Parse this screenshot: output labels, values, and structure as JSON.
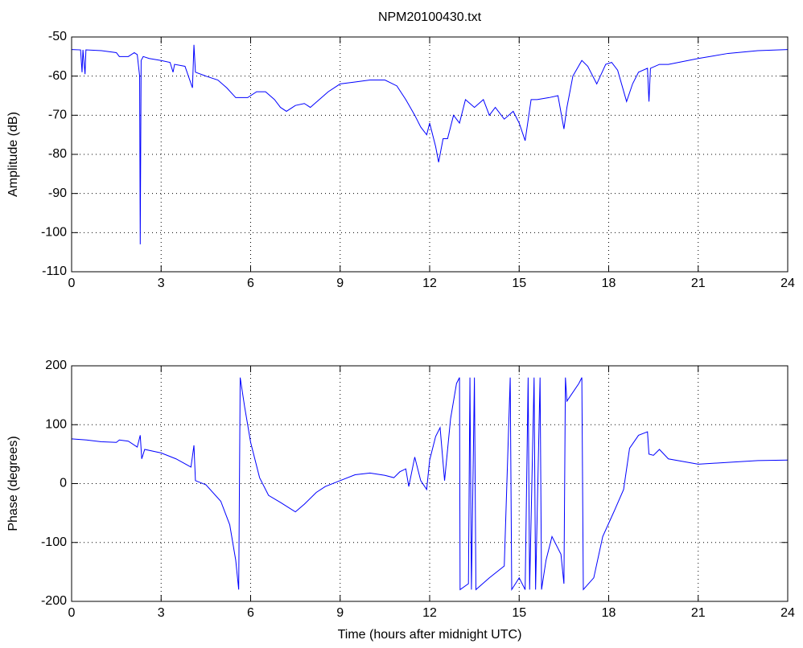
{
  "chart_data": [
    {
      "type": "line",
      "title": "NPM20100430.txt",
      "y_label": "Amplitude (dB)",
      "xlim": [
        0,
        24
      ],
      "xticks": [
        0,
        3,
        6,
        9,
        12,
        15,
        18,
        21,
        24
      ],
      "ylim": [
        -110,
        -50
      ],
      "yticks": [
        -110,
        -100,
        -90,
        -80,
        -70,
        -60,
        -50
      ],
      "grid": true,
      "color": "#0000ff",
      "x": [
        0,
        0.3,
        0.35,
        0.38,
        0.45,
        0.48,
        1.0,
        1.5,
        1.6,
        1.9,
        2.1,
        2.2,
        2.28,
        2.3,
        2.33,
        2.4,
        2.6,
        3,
        3.3,
        3.4,
        3.45,
        3.8,
        4.05,
        4.1,
        4.15,
        4.5,
        4.9,
        5.2,
        5.5,
        5.9,
        6.2,
        6.5,
        6.8,
        7,
        7.2,
        7.5,
        7.8,
        8,
        8.3,
        8.6,
        9,
        9.5,
        10,
        10.5,
        10.9,
        11.2,
        11.5,
        11.7,
        11.9,
        12,
        12.2,
        12.3,
        12.45,
        12.6,
        12.8,
        13,
        13.2,
        13.5,
        13.8,
        14,
        14.2,
        14.5,
        14.8,
        15,
        15.2,
        15.4,
        15.6,
        16,
        16.3,
        16.5,
        16.6,
        16.8,
        17.1,
        17.3,
        17.6,
        17.9,
        18.1,
        18.3,
        18.6,
        18.8,
        19,
        19.3,
        19.35,
        19.4,
        19.7,
        20,
        21,
        22,
        23,
        24
      ],
      "values": [
        -53.2,
        -53.3,
        -59,
        -53.3,
        -59.5,
        -53.3,
        -53.5,
        -54,
        -55,
        -55,
        -54,
        -54.5,
        -60,
        -103,
        -56,
        -55,
        -55.5,
        -56,
        -56.5,
        -59,
        -57,
        -57.5,
        -63,
        -52,
        -59,
        -60,
        -61,
        -63,
        -65.5,
        -65.5,
        -64,
        -64,
        -66,
        -68,
        -69,
        -67.5,
        -67,
        -68,
        -66,
        -64,
        -62,
        -61.5,
        -61,
        -61,
        -62.5,
        -66,
        -70,
        -73,
        -75,
        -72,
        -78,
        -82,
        -76,
        -76,
        -70,
        -72,
        -66,
        -68,
        -66,
        -70,
        -68,
        -71,
        -69,
        -72,
        -76.5,
        -66,
        -66,
        -65.5,
        -65,
        -73.5,
        -68,
        -60,
        -56,
        -57.5,
        -62,
        -57,
        -56.5,
        -58.5,
        -66.5,
        -62,
        -59,
        -58,
        -66.5,
        -58,
        -57,
        -57,
        -55.5,
        -54.2,
        -53.5,
        -53.2
      ]
    },
    {
      "type": "line",
      "x_label": "Time (hours after midnight UTC)",
      "y_label": "Phase (degrees)",
      "xlim": [
        0,
        24
      ],
      "xticks": [
        0,
        3,
        6,
        9,
        12,
        15,
        18,
        21,
        24
      ],
      "ylim": [
        -200,
        200
      ],
      "yticks": [
        -200,
        -100,
        0,
        100,
        200
      ],
      "grid": true,
      "color": "#0000ff",
      "x": [
        0,
        0.5,
        1,
        1.5,
        1.6,
        1.9,
        2.2,
        2.3,
        2.35,
        2.45,
        3,
        3.5,
        4,
        4.1,
        4.15,
        4.5,
        5,
        5.3,
        5.5,
        5.6,
        5.65,
        5.8,
        6,
        6.3,
        6.6,
        7,
        7.5,
        7.8,
        8.2,
        8.5,
        9,
        9.5,
        10,
        10.5,
        10.8,
        11,
        11.2,
        11.3,
        11.5,
        11.7,
        11.9,
        12,
        12.2,
        12.35,
        12.5,
        12.7,
        12.9,
        13,
        13.02,
        13.3,
        13.35,
        13.4,
        13.5,
        13.55,
        14,
        14.5,
        14.7,
        14.75,
        15,
        15.2,
        15.3,
        15.35,
        15.5,
        15.55,
        15.7,
        15.75,
        15.9,
        16.1,
        16.4,
        16.5,
        16.55,
        16.6,
        17,
        17.1,
        17.15,
        17.5,
        17.8,
        18.2,
        18.5,
        18.7,
        19,
        19.3,
        19.35,
        19.5,
        19.7,
        20,
        21,
        22,
        23,
        24
      ],
      "values": [
        76,
        74,
        71,
        70,
        74,
        72,
        62,
        82,
        42,
        58,
        52,
        42,
        28,
        65,
        5,
        -2,
        -30,
        -70,
        -130,
        -180,
        180,
        130,
        70,
        10,
        -20,
        -32,
        -48,
        -35,
        -15,
        -5,
        5,
        15,
        18,
        14,
        10,
        20,
        25,
        -5,
        45,
        5,
        -10,
        40,
        80,
        95,
        5,
        110,
        170,
        180,
        -180,
        -170,
        180,
        -180,
        180,
        -180,
        -160,
        -140,
        180,
        -180,
        -160,
        -180,
        180,
        -180,
        180,
        -180,
        180,
        -180,
        -130,
        -90,
        -120,
        -170,
        180,
        140,
        170,
        180,
        -180,
        -160,
        -90,
        -45,
        -10,
        60,
        82,
        88,
        50,
        48,
        58,
        42,
        33,
        36,
        39,
        40
      ]
    }
  ]
}
